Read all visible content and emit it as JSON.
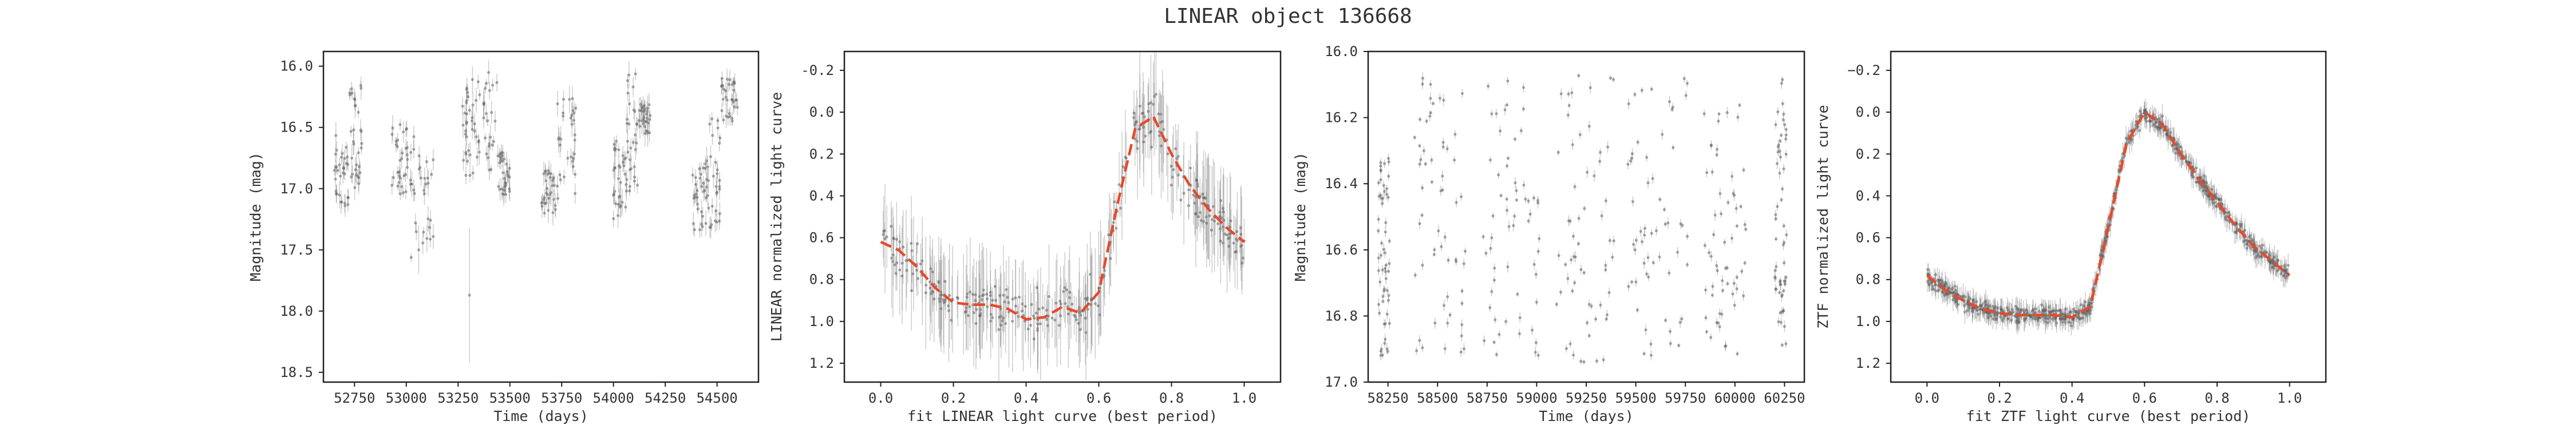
{
  "figure": {
    "title": "LINEAR object 136668"
  },
  "colors": {
    "points": "#555555",
    "errorbars": "#8a8a8a",
    "model": "#e8492a",
    "frame": "#222222"
  },
  "chart_data": [
    {
      "type": "scatter",
      "xlabel": "Time (days)",
      "ylabel": "Magnitude (mag)",
      "xlim": [
        52600,
        54700
      ],
      "ylim": [
        18.58,
        15.88
      ],
      "y_inverted": true,
      "xticks": [
        52750,
        53000,
        53250,
        53500,
        53750,
        54000,
        54250,
        54500
      ],
      "yticks": [
        16.0,
        16.5,
        17.0,
        17.5,
        18.0,
        18.5
      ],
      "xtick_labels": [
        "52750",
        "53000",
        "53250",
        "53500",
        "53750",
        "54000",
        "54250",
        "54500"
      ],
      "ytick_labels": [
        "16.0",
        "16.5",
        "17.0",
        "17.5",
        "18.0",
        "18.5"
      ],
      "observing_seasons": [
        {
          "start": 52650,
          "end": 52720,
          "mag_low": 16.55,
          "mag_high": 17.15
        },
        {
          "start": 52720,
          "end": 52790,
          "mag_low": 16.15,
          "mag_high": 17.0
        },
        {
          "start": 52930,
          "end": 53010,
          "mag_low": 16.45,
          "mag_high": 17.05
        },
        {
          "start": 53010,
          "end": 53130,
          "mag_low": 16.55,
          "mag_high": 17.6
        },
        {
          "start": 53270,
          "end": 53330,
          "mag_low": 16.05,
          "mag_high": 16.9
        },
        {
          "start": 53330,
          "end": 53440,
          "mag_low": 16.05,
          "mag_high": 16.85
        },
        {
          "start": 53440,
          "end": 53500,
          "mag_low": 16.7,
          "mag_high": 17.05
        },
        {
          "start": 53650,
          "end": 53720,
          "mag_low": 16.85,
          "mag_high": 17.2
        },
        {
          "start": 53720,
          "end": 53820,
          "mag_low": 16.25,
          "mag_high": 17.1
        },
        {
          "start": 54000,
          "end": 54060,
          "mag_low": 16.6,
          "mag_high": 17.25
        },
        {
          "start": 54060,
          "end": 54120,
          "mag_low": 16.05,
          "mag_high": 17.05
        },
        {
          "start": 54120,
          "end": 54180,
          "mag_low": 16.3,
          "mag_high": 16.55
        },
        {
          "start": 54380,
          "end": 54450,
          "mag_low": 16.7,
          "mag_high": 17.35
        },
        {
          "start": 54450,
          "end": 54520,
          "mag_low": 16.4,
          "mag_high": 17.35
        },
        {
          "start": 54520,
          "end": 54600,
          "mag_low": 16.1,
          "mag_high": 16.45
        }
      ],
      "outliers": [
        {
          "x": 53305,
          "y": 17.87,
          "err": 0.55
        },
        {
          "x": 53060,
          "y": 17.5,
          "err": 0.2
        }
      ]
    },
    {
      "type": "line",
      "xlabel": "fit LINEAR light curve (best period)",
      "ylabel": "LINEAR normalized light curve",
      "xlim": [
        -0.1,
        1.1
      ],
      "ylim": [
        1.29,
        -0.29
      ],
      "y_inverted": true,
      "xticks": [
        0.0,
        0.2,
        0.4,
        0.6,
        0.8,
        1.0
      ],
      "yticks": [
        -0.2,
        0.0,
        0.2,
        0.4,
        0.6,
        0.8,
        1.0,
        1.2
      ],
      "xtick_labels": [
        "0.0",
        "0.2",
        "0.4",
        "0.6",
        "0.8",
        "1.0"
      ],
      "ytick_labels": [
        "-0.2",
        "0.0",
        "0.2",
        "0.4",
        "0.6",
        "0.8",
        "1.0",
        "1.2"
      ],
      "model_curve": {
        "phase": [
          0.0,
          0.05,
          0.1,
          0.15,
          0.2,
          0.25,
          0.3,
          0.35,
          0.4,
          0.45,
          0.5,
          0.55,
          0.6,
          0.65,
          0.7,
          0.75,
          0.8,
          0.85,
          0.9,
          0.95,
          1.0
        ],
        "value": [
          0.62,
          0.66,
          0.74,
          0.84,
          0.91,
          0.92,
          0.92,
          0.94,
          0.99,
          0.98,
          0.93,
          0.96,
          0.86,
          0.45,
          0.08,
          0.02,
          0.2,
          0.35,
          0.46,
          0.55,
          0.62
        ]
      },
      "scatter": {
        "amplitude": 0.1,
        "error_range": [
          0.03,
          0.28
        ]
      }
    },
    {
      "type": "scatter",
      "xlabel": "Time (days)",
      "ylabel": "Magnitude (mag)",
      "xlim": [
        58150,
        60350
      ],
      "ylim": [
        17.0,
        16.0
      ],
      "y_inverted": true,
      "xticks": [
        58250,
        58500,
        58750,
        59000,
        59250,
        59500,
        59750,
        60000,
        60250
      ],
      "yticks": [
        16.0,
        16.2,
        16.4,
        16.6,
        16.8,
        17.0
      ],
      "xtick_labels": [
        "58250",
        "58500",
        "58750",
        "59000",
        "59250",
        "59500",
        "59750",
        "60000",
        "60250"
      ],
      "ytick_labels": [
        "16.0",
        "16.2",
        "16.4",
        "16.6",
        "16.8",
        "17.0"
      ],
      "observing_seasons": [
        {
          "start": 58200,
          "end": 58260,
          "mag_low": 16.3,
          "mag_high": 16.92
        },
        {
          "start": 58380,
          "end": 58640,
          "mag_low": 16.06,
          "mag_high": 16.92
        },
        {
          "start": 58730,
          "end": 59020,
          "mag_low": 16.08,
          "mag_high": 16.92
        },
        {
          "start": 59100,
          "end": 59390,
          "mag_low": 16.04,
          "mag_high": 16.94
        },
        {
          "start": 59460,
          "end": 59760,
          "mag_low": 16.05,
          "mag_high": 16.92
        },
        {
          "start": 59840,
          "end": 60060,
          "mag_low": 16.15,
          "mag_high": 16.92
        },
        {
          "start": 60200,
          "end": 60260,
          "mag_low": 16.05,
          "mag_high": 16.92
        }
      ]
    },
    {
      "type": "line",
      "xlabel": "fit ZTF light curve (best period)",
      "ylabel": "ZTF normalized light curve",
      "xlim": [
        -0.1,
        1.1
      ],
      "ylim": [
        1.29,
        -0.29
      ],
      "y_inverted": true,
      "xticks": [
        0.0,
        0.2,
        0.4,
        0.6,
        0.8,
        1.0
      ],
      "yticks": [
        -0.2,
        0.0,
        0.2,
        0.4,
        0.6,
        0.8,
        1.0,
        1.2
      ],
      "xtick_labels": [
        "0.0",
        "0.2",
        "0.4",
        "0.6",
        "0.8",
        "1.0"
      ],
      "ytick_labels": [
        "−0.2",
        "0.0",
        "0.2",
        "0.4",
        "0.6",
        "0.8",
        "1.0",
        "1.2"
      ],
      "model_curve": {
        "phase": [
          0.0,
          0.05,
          0.1,
          0.15,
          0.2,
          0.25,
          0.3,
          0.35,
          0.4,
          0.45,
          0.5,
          0.55,
          0.6,
          0.65,
          0.7,
          0.75,
          0.8,
          0.85,
          0.9,
          0.95,
          1.0
        ],
        "value": [
          0.78,
          0.85,
          0.9,
          0.94,
          0.96,
          0.97,
          0.97,
          0.97,
          0.98,
          0.93,
          0.55,
          0.15,
          0.0,
          0.06,
          0.2,
          0.32,
          0.43,
          0.54,
          0.64,
          0.71,
          0.78
        ]
      },
      "scatter": {
        "amplitude": 0.035,
        "error_range": [
          0.02,
          0.06
        ]
      }
    }
  ]
}
